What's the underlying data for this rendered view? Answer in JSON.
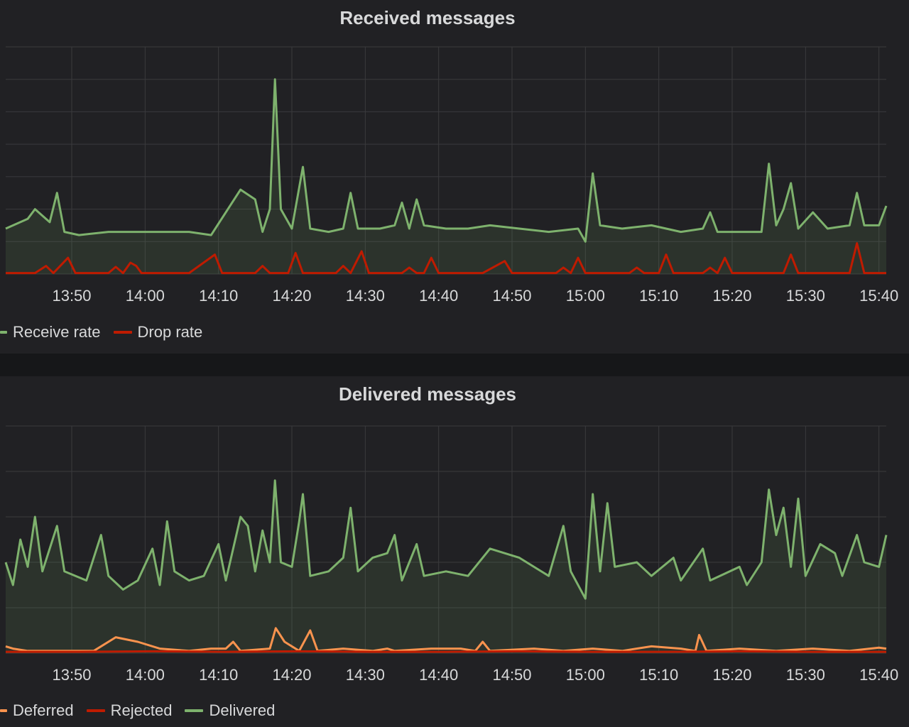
{
  "chart_data": [
    {
      "type": "area",
      "title": "Received messages",
      "x_ticks": [
        "13:50",
        "14:00",
        "14:10",
        "14:20",
        "14:30",
        "14:40",
        "14:50",
        "15:00",
        "15:10",
        "15:20",
        "15:30",
        "15:40"
      ],
      "x_range": [
        "13:41",
        "15:41"
      ],
      "y_range": [
        0,
        7
      ],
      "grid": true,
      "legend": "bottom-left",
      "series": [
        {
          "name": "Receive rate",
          "color": "#7eb26d",
          "fill": true,
          "points": [
            [
              0,
              1.4
            ],
            [
              3,
              1.7
            ],
            [
              4,
              2.0
            ],
            [
              6,
              1.6
            ],
            [
              7,
              2.5
            ],
            [
              8,
              1.3
            ],
            [
              10,
              1.2
            ],
            [
              14,
              1.3
            ],
            [
              18,
              1.3
            ],
            [
              22,
              1.3
            ],
            [
              25,
              1.3
            ],
            [
              28,
              1.2
            ],
            [
              30,
              1.9
            ],
            [
              32,
              2.6
            ],
            [
              34,
              2.3
            ],
            [
              35,
              1.3
            ],
            [
              36,
              2.0
            ],
            [
              36.7,
              6.0
            ],
            [
              37.5,
              2.0
            ],
            [
              39,
              1.4
            ],
            [
              40.5,
              3.3
            ],
            [
              41.5,
              1.4
            ],
            [
              44,
              1.3
            ],
            [
              46,
              1.4
            ],
            [
              47,
              2.5
            ],
            [
              48,
              1.4
            ],
            [
              51,
              1.4
            ],
            [
              53,
              1.5
            ],
            [
              54,
              2.2
            ],
            [
              55,
              1.4
            ],
            [
              56,
              2.3
            ],
            [
              57,
              1.5
            ],
            [
              60,
              1.4
            ],
            [
              63,
              1.4
            ],
            [
              66,
              1.5
            ],
            [
              70,
              1.4
            ],
            [
              74,
              1.3
            ],
            [
              78,
              1.4
            ],
            [
              79,
              1.0
            ],
            [
              80,
              3.1
            ],
            [
              81,
              1.5
            ],
            [
              84,
              1.4
            ],
            [
              88,
              1.5
            ],
            [
              92,
              1.3
            ],
            [
              95,
              1.4
            ],
            [
              96,
              1.9
            ],
            [
              97,
              1.3
            ],
            [
              100,
              1.3
            ],
            [
              103,
              1.3
            ],
            [
              104,
              3.4
            ],
            [
              105,
              1.5
            ],
            [
              106,
              2.0
            ],
            [
              107,
              2.8
            ],
            [
              108,
              1.4
            ],
            [
              110,
              1.9
            ],
            [
              112,
              1.4
            ],
            [
              115,
              1.5
            ],
            [
              116,
              2.5
            ],
            [
              117,
              1.5
            ],
            [
              119,
              1.5
            ],
            [
              120,
              2.1
            ]
          ]
        },
        {
          "name": "Drop rate",
          "color": "#bf1b00",
          "fill": false,
          "points": [
            [
              0,
              0.03
            ],
            [
              4,
              0.03
            ],
            [
              5.5,
              0.25
            ],
            [
              6.5,
              0.03
            ],
            [
              8.5,
              0.5
            ],
            [
              9.5,
              0.03
            ],
            [
              14,
              0.03
            ],
            [
              15,
              0.22
            ],
            [
              16,
              0.03
            ],
            [
              17,
              0.35
            ],
            [
              17.8,
              0.25
            ],
            [
              18.5,
              0.03
            ],
            [
              25,
              0.03
            ],
            [
              28.5,
              0.6
            ],
            [
              29.5,
              0.03
            ],
            [
              34,
              0.03
            ],
            [
              35,
              0.25
            ],
            [
              36,
              0.03
            ],
            [
              38.5,
              0.03
            ],
            [
              39.5,
              0.65
            ],
            [
              40.5,
              0.03
            ],
            [
              45,
              0.03
            ],
            [
              46,
              0.25
            ],
            [
              47,
              0.03
            ],
            [
              48.5,
              0.7
            ],
            [
              49.5,
              0.03
            ],
            [
              54,
              0.03
            ],
            [
              55,
              0.2
            ],
            [
              56,
              0.03
            ],
            [
              57,
              0.03
            ],
            [
              58,
              0.5
            ],
            [
              59,
              0.03
            ],
            [
              65,
              0.03
            ],
            [
              68,
              0.4
            ],
            [
              69,
              0.03
            ],
            [
              75,
              0.03
            ],
            [
              76,
              0.2
            ],
            [
              77,
              0.03
            ],
            [
              78,
              0.5
            ],
            [
              79,
              0.03
            ],
            [
              85,
              0.03
            ],
            [
              86,
              0.2
            ],
            [
              87,
              0.03
            ],
            [
              89,
              0.03
            ],
            [
              90,
              0.6
            ],
            [
              91,
              0.03
            ],
            [
              95,
              0.03
            ],
            [
              96,
              0.2
            ],
            [
              97,
              0.03
            ],
            [
              98,
              0.5
            ],
            [
              99,
              0.03
            ],
            [
              106,
              0.03
            ],
            [
              107,
              0.6
            ],
            [
              108,
              0.03
            ],
            [
              115,
              0.03
            ],
            [
              116,
              0.95
            ],
            [
              117,
              0.03
            ],
            [
              120,
              0.03
            ]
          ]
        }
      ]
    },
    {
      "type": "area",
      "title": "Delivered messages",
      "x_ticks": [
        "13:50",
        "14:00",
        "14:10",
        "14:20",
        "14:30",
        "14:40",
        "14:50",
        "15:00",
        "15:10",
        "15:20",
        "15:30",
        "15:40"
      ],
      "x_range": [
        "13:41",
        "15:41"
      ],
      "y_range": [
        0,
        5
      ],
      "grid": true,
      "legend": "bottom-left",
      "series": [
        {
          "name": "Deferred",
          "color": "#f9934e",
          "fill": false,
          "points": [
            [
              0,
              0.15
            ],
            [
              1,
              0.1
            ],
            [
              3,
              0.05
            ],
            [
              8,
              0.05
            ],
            [
              12,
              0.05
            ],
            [
              15,
              0.35
            ],
            [
              18,
              0.25
            ],
            [
              21,
              0.1
            ],
            [
              25,
              0.05
            ],
            [
              28,
              0.1
            ],
            [
              30,
              0.1
            ],
            [
              31,
              0.25
            ],
            [
              32,
              0.05
            ],
            [
              36,
              0.1
            ],
            [
              36.8,
              0.55
            ],
            [
              38,
              0.25
            ],
            [
              40,
              0.05
            ],
            [
              41.5,
              0.5
            ],
            [
              42.5,
              0.05
            ],
            [
              46,
              0.1
            ],
            [
              50,
              0.05
            ],
            [
              52,
              0.1
            ],
            [
              53,
              0.05
            ],
            [
              58,
              0.1
            ],
            [
              62,
              0.1
            ],
            [
              64,
              0.05
            ],
            [
              65,
              0.25
            ],
            [
              66,
              0.05
            ],
            [
              72,
              0.1
            ],
            [
              76,
              0.05
            ],
            [
              80,
              0.1
            ],
            [
              84,
              0.05
            ],
            [
              88,
              0.15
            ],
            [
              92,
              0.1
            ],
            [
              94,
              0.05
            ],
            [
              94.5,
              0.4
            ],
            [
              95.5,
              0.05
            ],
            [
              100,
              0.1
            ],
            [
              105,
              0.05
            ],
            [
              110,
              0.1
            ],
            [
              115,
              0.05
            ],
            [
              119,
              0.12
            ],
            [
              120,
              0.1
            ]
          ]
        },
        {
          "name": "Rejected",
          "color": "#bf1b00",
          "fill": false,
          "points": [
            [
              0,
              0.03
            ],
            [
              10,
              0.03
            ],
            [
              20,
              0.04
            ],
            [
              30,
              0.03
            ],
            [
              40,
              0.04
            ],
            [
              50,
              0.03
            ],
            [
              60,
              0.03
            ],
            [
              70,
              0.04
            ],
            [
              80,
              0.03
            ],
            [
              90,
              0.03
            ],
            [
              100,
              0.04
            ],
            [
              110,
              0.03
            ],
            [
              120,
              0.03
            ]
          ]
        },
        {
          "name": "Delivered",
          "color": "#7eb26d",
          "fill": true,
          "points": [
            [
              0,
              2.0
            ],
            [
              1,
              1.5
            ],
            [
              2,
              2.5
            ],
            [
              3,
              1.9
            ],
            [
              4,
              3.0
            ],
            [
              5,
              1.8
            ],
            [
              7,
              2.8
            ],
            [
              8,
              1.8
            ],
            [
              11,
              1.6
            ],
            [
              13,
              2.6
            ],
            [
              14,
              1.7
            ],
            [
              16,
              1.4
            ],
            [
              18,
              1.6
            ],
            [
              20,
              2.3
            ],
            [
              21,
              1.5
            ],
            [
              22,
              2.9
            ],
            [
              23,
              1.8
            ],
            [
              25,
              1.6
            ],
            [
              27,
              1.7
            ],
            [
              29,
              2.4
            ],
            [
              30,
              1.6
            ],
            [
              32,
              3.0
            ],
            [
              33,
              2.8
            ],
            [
              34,
              1.8
            ],
            [
              35,
              2.7
            ],
            [
              36,
              2.0
            ],
            [
              36.7,
              3.8
            ],
            [
              37.5,
              2.0
            ],
            [
              39,
              1.9
            ],
            [
              40,
              2.9
            ],
            [
              40.5,
              3.5
            ],
            [
              41.5,
              1.7
            ],
            [
              44,
              1.8
            ],
            [
              46,
              2.1
            ],
            [
              47,
              3.2
            ],
            [
              48,
              1.8
            ],
            [
              50,
              2.1
            ],
            [
              52,
              2.2
            ],
            [
              53,
              2.6
            ],
            [
              54,
              1.6
            ],
            [
              56,
              2.4
            ],
            [
              57,
              1.7
            ],
            [
              60,
              1.8
            ],
            [
              63,
              1.7
            ],
            [
              66,
              2.3
            ],
            [
              70,
              2.1
            ],
            [
              74,
              1.7
            ],
            [
              76,
              2.8
            ],
            [
              77,
              1.8
            ],
            [
              79,
              1.2
            ],
            [
              80,
              3.5
            ],
            [
              81,
              1.8
            ],
            [
              82,
              3.3
            ],
            [
              83,
              1.9
            ],
            [
              86,
              2.0
            ],
            [
              88,
              1.7
            ],
            [
              91,
              2.1
            ],
            [
              92,
              1.6
            ],
            [
              95,
              2.3
            ],
            [
              96,
              1.6
            ],
            [
              100,
              1.9
            ],
            [
              101,
              1.5
            ],
            [
              103,
              2.0
            ],
            [
              104,
              3.6
            ],
            [
              105,
              2.6
            ],
            [
              106,
              3.2
            ],
            [
              107,
              1.9
            ],
            [
              108,
              3.4
            ],
            [
              109,
              1.7
            ],
            [
              111,
              2.4
            ],
            [
              113,
              2.2
            ],
            [
              114,
              1.7
            ],
            [
              116,
              2.6
            ],
            [
              117,
              2.0
            ],
            [
              119,
              1.9
            ],
            [
              120,
              2.6
            ]
          ]
        }
      ]
    }
  ]
}
